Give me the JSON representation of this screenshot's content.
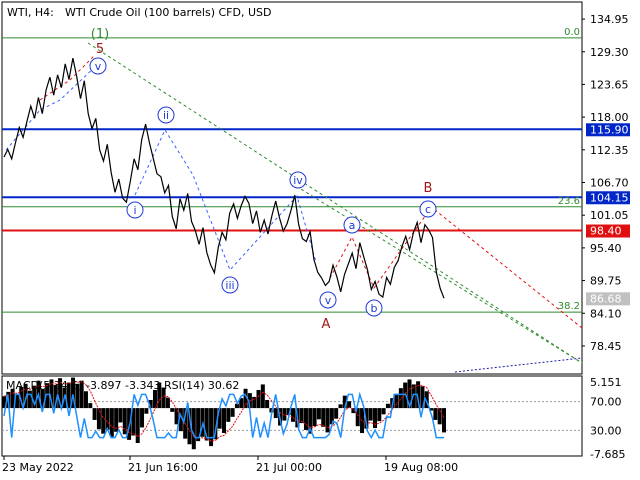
{
  "header": {
    "symbol": "WTI, H4:",
    "description": "WTI Crude Oil (100 barrels) CFD, USD"
  },
  "colors": {
    "price_line": "#000000",
    "blue_level": "#0026c8",
    "red_level": "#e01010",
    "fib_level": "#2e8b2e",
    "wave_label": "#1f3ad6",
    "wave_abc_label": "#a01818",
    "wave_1_label": "#2e8b2e",
    "macd_hist": "#000000",
    "rsi_line": "#1e90ff",
    "signal_line": "#e01010"
  },
  "price_axis": {
    "labels": [
      "134.95",
      "129.30",
      "123.65",
      "118.00",
      "112.35",
      "106.70",
      "101.05",
      "95.40",
      "89.75",
      "84.10",
      "78.45"
    ]
  },
  "levels": [
    {
      "value": 115.9,
      "label": "115.90",
      "kind": "blue"
    },
    {
      "value": 104.15,
      "label": "104.15",
      "kind": "blue"
    },
    {
      "value": 98.4,
      "label": "98.40",
      "kind": "red"
    },
    {
      "value": 86.68,
      "label": "86.68",
      "kind": "current"
    }
  ],
  "fib_levels": [
    {
      "label": "0.0",
      "value": 131.7
    },
    {
      "label": "23.6",
      "value": 102.5
    },
    {
      "label": "38.2",
      "value": 84.3
    }
  ],
  "wave_labels": [
    {
      "text": "(1)",
      "style": "plain-green"
    },
    {
      "text": "5",
      "style": "plain-red"
    },
    {
      "text": "v",
      "style": "circle"
    },
    {
      "text": "ii",
      "style": "circle"
    },
    {
      "text": "i",
      "style": "circle"
    },
    {
      "text": "iv",
      "style": "circle"
    },
    {
      "text": "iii",
      "style": "circle"
    },
    {
      "text": "a",
      "style": "circle"
    },
    {
      "text": "v",
      "style": "circle"
    },
    {
      "text": "b",
      "style": "circle"
    },
    {
      "text": "c",
      "style": "circle"
    },
    {
      "text": "B",
      "style": "plain-red"
    },
    {
      "text": "A",
      "style": "plain-red"
    }
  ],
  "indicator": {
    "title": "MACD(5,34,5) -3.897 -3.343 RSI(14) 30.62",
    "axis_labels": [
      "5.151",
      "70.00",
      "30.00",
      "-7.685"
    ]
  },
  "time_axis": {
    "labels": [
      "23 May 2022",
      "21 Jun 16:00",
      "21 Jul 00:00",
      "19 Aug 08:00"
    ]
  },
  "chart_data": {
    "type": "line",
    "title": "WTI Crude Oil (100 barrels) CFD, USD",
    "timeframe": "H4",
    "ylim": [
      73.6,
      137.9
    ],
    "ticks": [
      "134.95",
      "129.30",
      "123.65",
      "118.00",
      "112.35",
      "106.70",
      "101.05",
      "95.40",
      "89.75",
      "84.10",
      "78.45"
    ],
    "x_ticks": [
      "23 May 2022",
      "21 Jun 16:00",
      "21 Jul 00:00",
      "19 Aug 08:00"
    ],
    "series": [
      {
        "values": [
          111.1,
          112.4,
          110.8,
          113.6,
          116.2,
          114.5,
          117.3,
          119.9,
          117.8,
          121.4,
          118.6,
          122.7,
          124.9,
          121.8,
          125.3,
          123.1,
          127.2,
          124.5,
          128.2,
          125.0,
          121.2,
          124.3,
          118.6,
          116.0,
          117.8,
          112.3,
          110.4,
          113.3,
          108.5,
          105.0,
          107.3,
          104.0,
          103.3,
          106.9,
          110.8,
          108.9,
          114.1,
          116.8,
          113.6,
          110.9,
          108.2,
          107.7,
          104.9,
          106.2,
          100.8,
          98.7,
          103.9,
          101.9,
          104.8,
          100.0,
          98.4,
          96.0,
          98.9,
          94.6,
          92.5,
          91.1,
          95.5,
          98.1,
          96.8,
          101.4,
          103.0,
          100.5,
          102.7,
          104.3,
          103.1,
          99.6,
          101.8,
          98.1,
          100.2,
          97.8,
          100.9,
          103.5,
          100.6,
          98.3,
          99.6,
          101.9,
          104.5,
          99.5,
          97.0,
          96.5,
          98.2,
          93.4,
          91.2,
          90.2,
          88.9,
          89.6,
          92.4,
          90.4,
          87.8,
          90.8,
          92.6,
          94.5,
          91.8,
          96.3,
          93.9,
          91.6,
          88.2,
          89.6,
          87.4,
          86.9,
          90.3,
          89.1,
          92.0,
          93.2,
          95.6,
          97.4,
          95.1,
          98.0,
          99.8,
          96.3,
          99.4,
          98.5,
          97.2,
          91.2,
          88.4,
          86.7
        ]
      }
    ],
    "indicator_series": [
      {
        "name": "MACD(5,34,5)",
        "type": "histogram",
        "last_value": -3.897,
        "values": [
          1.9,
          2.6,
          3.1,
          2.2,
          3.4,
          3.9,
          2.8,
          3.6,
          4.4,
          3.1,
          4.0,
          4.6,
          3.7,
          4.8,
          3.3,
          4.1,
          4.9,
          3.9,
          4.4,
          2.7,
          0.8,
          -1.9,
          -3.4,
          -4.1,
          -3.5,
          -4.6,
          -3.8,
          -2.3,
          -4.2,
          -5.1,
          -4.4,
          -5.6,
          -3.1,
          -0.9,
          1.3,
          2.9,
          4.1,
          3.3,
          1.7,
          -0.6,
          -2.6,
          -3.7,
          -4.9,
          -5.8,
          -6.6,
          -5.3,
          -4.6,
          -5.2,
          -6.1,
          -5.0,
          -3.3,
          -4.0,
          -2.2,
          -1.4,
          0.7,
          1.6,
          3.1,
          2.4,
          1.8,
          2.9,
          3.8,
          1.3,
          -0.7,
          -1.6,
          -2.8,
          -2.0,
          -1.1,
          -2.2,
          -3.1,
          -2.4,
          -3.5,
          -4.1,
          -2.9,
          -1.8,
          -3.0,
          -3.9,
          -2.6,
          -1.7,
          0.6,
          2.0,
          1.1,
          -0.8,
          -2.9,
          -4.0,
          -3.3,
          -2.0,
          -3.2,
          -2.1,
          -1.0,
          0.7,
          1.6,
          2.3,
          3.2,
          4.1,
          4.6,
          3.8,
          4.3,
          3.5,
          2.7,
          -0.4,
          -1.9,
          -2.6,
          -3.9
        ]
      },
      {
        "name": "signal",
        "type": "line",
        "last_value": -3.343
      },
      {
        "name": "RSI(14)",
        "type": "line",
        "last_value": 30.62
      }
    ]
  }
}
